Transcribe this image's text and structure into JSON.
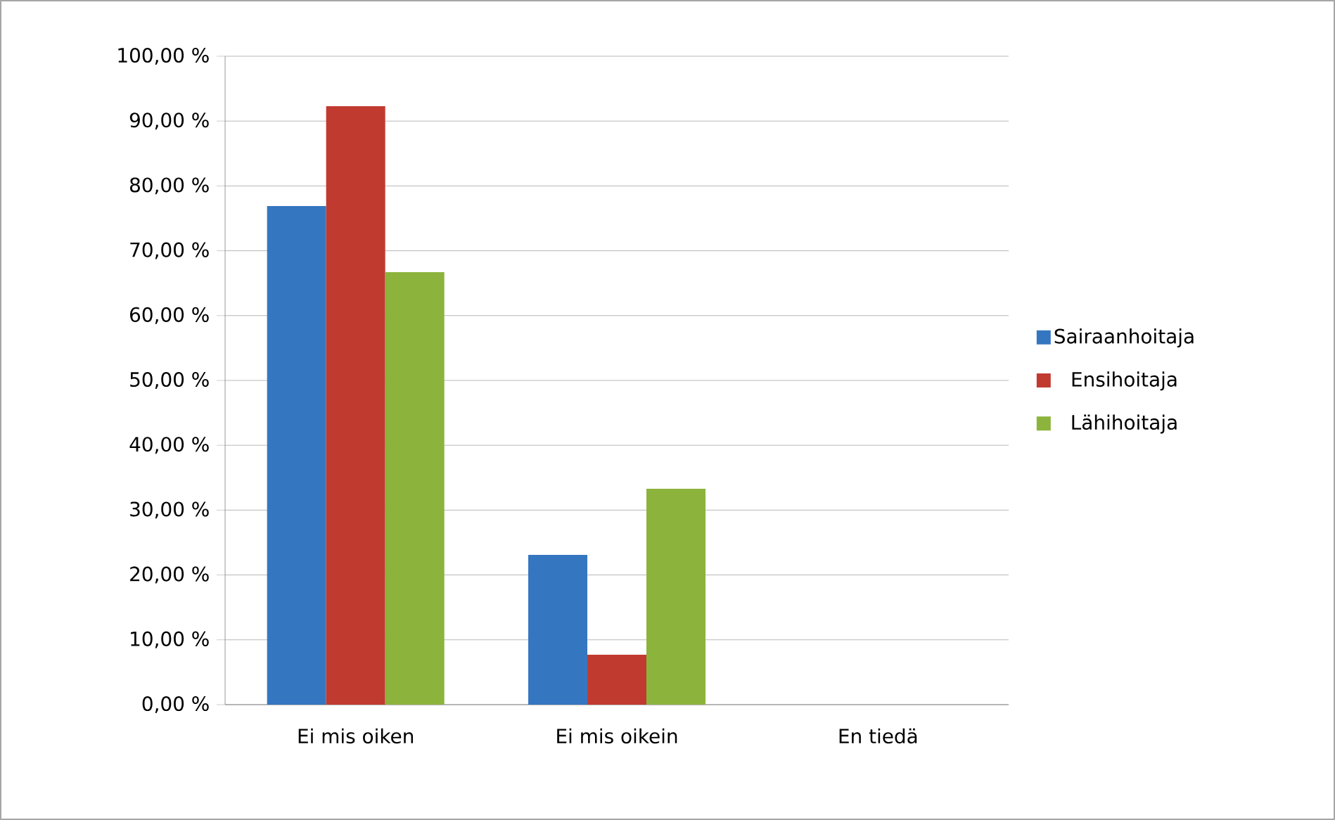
{
  "chart_data": {
    "type": "bar",
    "categories": [
      "Ei mis oiken",
      "Ei mis oikein",
      "En tiedä"
    ],
    "series": [
      {
        "name": "Sairaanhoitaja",
        "color": "#3576c0",
        "values": [
          76.9,
          23.1,
          0
        ]
      },
      {
        "name": "Ensihoitaja",
        "color": "#c13a30",
        "values": [
          92.3,
          7.7,
          0
        ]
      },
      {
        "name": "Lähihoitaja",
        "color": "#8cb33c",
        "values": [
          66.7,
          33.3,
          0
        ]
      }
    ],
    "ylim": [
      0,
      100
    ],
    "yticks": [
      {
        "value": 0,
        "label": "0,00 %"
      },
      {
        "value": 10,
        "label": "10,00 %"
      },
      {
        "value": 20,
        "label": "20,00 %"
      },
      {
        "value": 30,
        "label": "30,00 %"
      },
      {
        "value": 40,
        "label": "40,00 %"
      },
      {
        "value": 50,
        "label": "50,00 %"
      },
      {
        "value": 60,
        "label": "60,00 %"
      },
      {
        "value": 70,
        "label": "70,00 %"
      },
      {
        "value": 80,
        "label": "80,00 %"
      },
      {
        "value": 90,
        "label": "90,00 %"
      },
      {
        "value": 100,
        "label": "100,00 %"
      }
    ],
    "grid": "y",
    "legend": "right"
  }
}
